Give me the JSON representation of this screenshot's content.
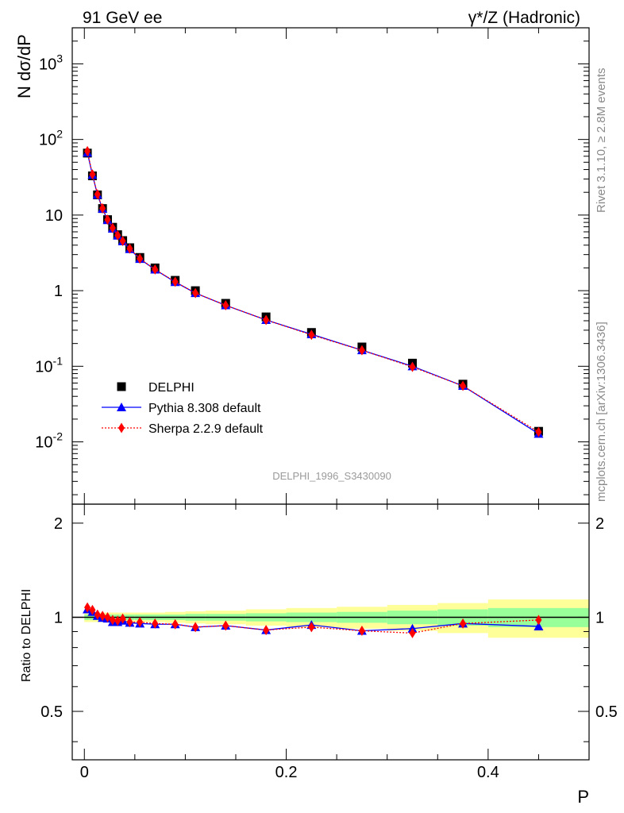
{
  "header": {
    "left": "91 GeV ee",
    "right": "γ*/Z (Hadronic)"
  },
  "side_text": {
    "rivet": "Rivet 3.1.10, ≥ 2.8M events",
    "site": "mcplots.cern.ch [arXiv:1306.3436]"
  },
  "analysis_tag": "DELPHI_1996_S3430090",
  "chart_data": [
    {
      "type": "scatter",
      "panel": "main",
      "ylabel": "N dσ/dP",
      "yscale": "log",
      "ylim": [
        0.0015,
        3000
      ],
      "xlim": [
        -0.012,
        0.5
      ],
      "ytick_labels": [
        "10^-2",
        "10^-1",
        "1",
        "10",
        "10^2",
        "10^3"
      ],
      "legend_position": "lower-left",
      "x": [
        0.003,
        0.008,
        0.013,
        0.018,
        0.023,
        0.028,
        0.033,
        0.038,
        0.045,
        0.055,
        0.07,
        0.09,
        0.11,
        0.14,
        0.18,
        0.225,
        0.275,
        0.325,
        0.375,
        0.45
      ],
      "series": [
        {
          "name": "DELPHI",
          "color": "#000000",
          "marker": "square",
          "values": [
            66,
            33,
            18.5,
            12.2,
            8.7,
            6.9,
            5.5,
            4.6,
            3.7,
            2.75,
            2.0,
            1.37,
            1.0,
            0.68,
            0.45,
            0.28,
            0.18,
            0.11,
            0.058,
            0.0138
          ]
        },
        {
          "name": "Pythia 8.308 default",
          "color": "#0000ff",
          "marker": "triangle",
          "line": "solid",
          "values": [
            67,
            34,
            18.6,
            12.1,
            8.6,
            6.6,
            5.35,
            4.5,
            3.55,
            2.63,
            1.9,
            1.3,
            0.93,
            0.64,
            0.41,
            0.265,
            0.163,
            0.1,
            0.055,
            0.0128
          ]
        },
        {
          "name": "Sherpa 2.2.9 default",
          "color": "#ff0000",
          "marker": "diamond",
          "line": "dotted",
          "values": [
            70,
            34.5,
            18.8,
            12.3,
            8.7,
            6.75,
            5.4,
            4.55,
            3.6,
            2.65,
            1.91,
            1.31,
            0.93,
            0.64,
            0.41,
            0.26,
            0.163,
            0.098,
            0.055,
            0.0135
          ]
        }
      ]
    },
    {
      "type": "scatter",
      "panel": "ratio",
      "xlabel": "P",
      "ylabel": "Ratio to DELPHI",
      "ylim": [
        0.35,
        2.3
      ],
      "xlim": [
        -0.012,
        0.5
      ],
      "xtick_labels": [
        "0",
        "0.2",
        "0.4"
      ],
      "ytick_labels": [
        "0.5",
        "1",
        "2"
      ],
      "band_edges": [
        0,
        0.005,
        0.01,
        0.015,
        0.02,
        0.025,
        0.03,
        0.035,
        0.04,
        0.05,
        0.06,
        0.08,
        0.1,
        0.12,
        0.16,
        0.2,
        0.25,
        0.3,
        0.35,
        0.4,
        0.5
      ],
      "band_inner": [
        0.02,
        0.02,
        0.02,
        0.02,
        0.02,
        0.02,
        0.02,
        0.02,
        0.02,
        0.02,
        0.02,
        0.02,
        0.025,
        0.025,
        0.03,
        0.035,
        0.04,
        0.05,
        0.06,
        0.07
      ],
      "band_outer": [
        0.035,
        0.035,
        0.035,
        0.035,
        0.035,
        0.035,
        0.035,
        0.035,
        0.035,
        0.035,
        0.035,
        0.04,
        0.045,
        0.05,
        0.06,
        0.07,
        0.08,
        0.095,
        0.11,
        0.14
      ],
      "x": [
        0.003,
        0.008,
        0.013,
        0.018,
        0.023,
        0.028,
        0.033,
        0.038,
        0.045,
        0.055,
        0.07,
        0.09,
        0.11,
        0.14,
        0.18,
        0.225,
        0.275,
        0.325,
        0.375,
        0.45
      ],
      "series": [
        {
          "name": "Pythia 8.308 default",
          "color": "#0000ff",
          "marker": "triangle",
          "line": "solid",
          "values": [
            1.06,
            1.04,
            1.01,
            0.995,
            0.99,
            0.965,
            0.965,
            0.975,
            0.96,
            0.955,
            0.95,
            0.95,
            0.93,
            0.94,
            0.91,
            0.945,
            0.905,
            0.92,
            0.955,
            0.935
          ]
        },
        {
          "name": "Sherpa 2.2.9 default",
          "color": "#ff0000",
          "marker": "diamond",
          "line": "dotted",
          "values": [
            1.075,
            1.055,
            1.02,
            1.01,
            1.0,
            0.98,
            0.975,
            0.99,
            0.965,
            0.965,
            0.955,
            0.95,
            0.93,
            0.94,
            0.91,
            0.93,
            0.905,
            0.89,
            0.955,
            0.98
          ]
        }
      ]
    }
  ]
}
